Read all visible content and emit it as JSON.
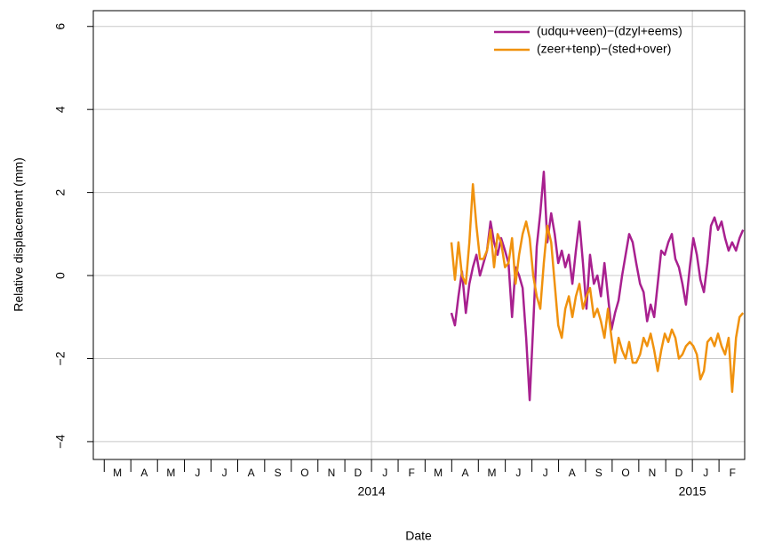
{
  "chart_data": {
    "type": "line",
    "xlabel": "Date",
    "ylabel": "Relative displacement (mm)",
    "x": [
      2014.249,
      2014.26,
      2014.271,
      2014.282,
      2014.294,
      2014.305,
      2014.316,
      2014.327,
      2014.338,
      2014.349,
      2014.36,
      2014.371,
      2014.382,
      2014.393,
      2014.404,
      2014.416,
      2014.427,
      2014.438,
      2014.449,
      2014.46,
      2014.471,
      2014.482,
      2014.493,
      2014.504,
      2014.515,
      2014.526,
      2014.537,
      2014.548,
      2014.56,
      2014.571,
      2014.582,
      2014.593,
      2014.604,
      2014.615,
      2014.626,
      2014.637,
      2014.648,
      2014.659,
      2014.67,
      2014.681,
      2014.693,
      2014.704,
      2014.715,
      2014.726,
      2014.737,
      2014.748,
      2014.759,
      2014.77,
      2014.781,
      2014.792,
      2014.803,
      2014.814,
      2014.825,
      2014.837,
      2014.848,
      2014.859,
      2014.87,
      2014.881,
      2014.892,
      2014.903,
      2014.914,
      2014.925,
      2014.936,
      2014.947,
      2014.958,
      2014.969,
      2014.98,
      2014.992,
      2015.003,
      2015.014,
      2015.025,
      2015.036,
      2015.047,
      2015.058,
      2015.069,
      2015.08,
      2015.091,
      2015.102,
      2015.113,
      2015.124,
      2015.136,
      2015.147,
      2015.158
    ],
    "series": [
      {
        "name": "(udqu+veen)−(dzyl+eems)",
        "color": "#a8208f",
        "values": [
          -0.9,
          -1.2,
          -0.5,
          0.1,
          -0.9,
          -0.2,
          0.2,
          0.5,
          0.0,
          0.3,
          0.6,
          1.3,
          0.8,
          0.5,
          0.9,
          0.6,
          0.3,
          -1.0,
          0.2,
          0.0,
          -0.3,
          -1.5,
          -3.0,
          -1.2,
          0.7,
          1.5,
          2.5,
          0.8,
          1.5,
          1.0,
          0.3,
          0.6,
          0.2,
          0.5,
          -0.2,
          0.6,
          1.3,
          0.3,
          -0.8,
          0.5,
          -0.2,
          0.0,
          -0.5,
          0.3,
          -0.5,
          -1.3,
          -0.9,
          -0.6,
          0.0,
          0.5,
          1.0,
          0.8,
          0.3,
          -0.2,
          -0.4,
          -1.1,
          -0.7,
          -1.0,
          -0.2,
          0.6,
          0.5,
          0.8,
          1.0,
          0.4,
          0.2,
          -0.2,
          -0.7,
          0.2,
          0.9,
          0.5,
          -0.1,
          -0.4,
          0.3,
          1.2,
          1.4,
          1.1,
          1.3,
          0.9,
          0.6,
          0.8,
          0.6,
          0.9,
          1.1
        ]
      },
      {
        "name": "(zeer+tenp)−(sted+over)",
        "color": "#f0920e",
        "values": [
          0.8,
          -0.1,
          0.8,
          0.0,
          -0.2,
          0.8,
          2.2,
          1.2,
          0.4,
          0.4,
          0.6,
          1.1,
          0.2,
          1.0,
          0.8,
          0.2,
          0.3,
          0.9,
          -0.2,
          0.5,
          1.0,
          1.3,
          0.9,
          0.0,
          -0.5,
          -0.8,
          0.3,
          1.2,
          0.8,
          -0.2,
          -1.2,
          -1.5,
          -0.8,
          -0.5,
          -1.0,
          -0.5,
          -0.2,
          -0.8,
          -0.5,
          -0.3,
          -1.0,
          -0.8,
          -1.1,
          -1.5,
          -0.8,
          -1.5,
          -2.1,
          -1.5,
          -1.8,
          -2.0,
          -1.6,
          -2.1,
          -2.1,
          -1.9,
          -1.5,
          -1.7,
          -1.4,
          -1.8,
          -2.3,
          -1.8,
          -1.4,
          -1.6,
          -1.3,
          -1.5,
          -2.0,
          -1.9,
          -1.7,
          -1.6,
          -1.7,
          -1.9,
          -2.5,
          -2.3,
          -1.6,
          -1.5,
          -1.7,
          -1.4,
          -1.7,
          -1.9,
          -1.5,
          -2.8,
          -1.5,
          -1.0,
          -0.9
        ]
      }
    ],
    "xlim": [
      2013.133,
      2015.163
    ],
    "xticks": [
      2013.167,
      2013.25,
      2013.333,
      2013.417,
      2013.5,
      2013.583,
      2013.667,
      2013.75,
      2013.833,
      2013.917,
      2014,
      2014.083,
      2014.167,
      2014.25,
      2014.333,
      2014.417,
      2014.5,
      2014.583,
      2014.667,
      2014.75,
      2014.833,
      2014.917,
      2015,
      2015.083
    ],
    "month_labels": [
      {
        "value": 2013.208,
        "label": "M"
      },
      {
        "value": 2013.292,
        "label": "A"
      },
      {
        "value": 2013.375,
        "label": "M"
      },
      {
        "value": 2013.458,
        "label": "J"
      },
      {
        "value": 2013.542,
        "label": "J"
      },
      {
        "value": 2013.625,
        "label": "A"
      },
      {
        "value": 2013.708,
        "label": "S"
      },
      {
        "value": 2013.792,
        "label": "O"
      },
      {
        "value": 2013.875,
        "label": "N"
      },
      {
        "value": 2013.958,
        "label": "D"
      },
      {
        "value": 2014.042,
        "label": "J"
      },
      {
        "value": 2014.125,
        "label": "F"
      },
      {
        "value": 2014.208,
        "label": "M"
      },
      {
        "value": 2014.292,
        "label": "A"
      },
      {
        "value": 2014.375,
        "label": "M"
      },
      {
        "value": 2014.458,
        "label": "J"
      },
      {
        "value": 2014.542,
        "label": "J"
      },
      {
        "value": 2014.625,
        "label": "A"
      },
      {
        "value": 2014.708,
        "label": "S"
      },
      {
        "value": 2014.792,
        "label": "O"
      },
      {
        "value": 2014.875,
        "label": "N"
      },
      {
        "value": 2014.958,
        "label": "D"
      },
      {
        "value": 2015.042,
        "label": "J"
      },
      {
        "value": 2015.125,
        "label": "F"
      }
    ],
    "year_ticks": [
      2014,
      2015
    ],
    "ylim": [
      -4.43,
      6.38
    ],
    "yticks": [
      {
        "value": -4,
        "label": "−4"
      },
      {
        "value": -2,
        "label": "−2"
      },
      0,
      2,
      4,
      6
    ],
    "grid": true,
    "legend": "top-right"
  }
}
